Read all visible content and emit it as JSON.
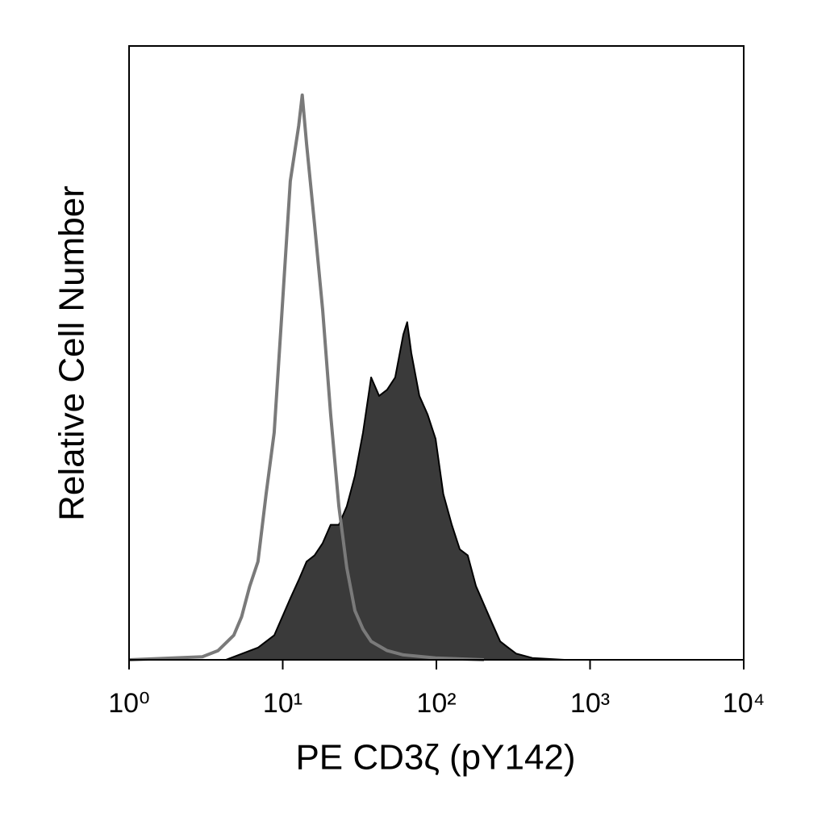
{
  "chart_data": {
    "type": "histogram",
    "xlabel": "PE CD3ζ (pY142)",
    "ylabel": "Relative Cell Number",
    "xscale": "log",
    "xlim": [
      1,
      10000
    ],
    "xticks": [
      {
        "value": 1,
        "label": "10⁰"
      },
      {
        "value": 10,
        "label": "10¹"
      },
      {
        "value": 100,
        "label": "10²"
      },
      {
        "value": 1000,
        "label": "10³"
      },
      {
        "value": 10000,
        "label": "10⁴"
      }
    ],
    "ylim": [
      0,
      100
    ],
    "series": [
      {
        "color": "#3a3a3a",
        "filled": true,
        "x": [
          4.26,
          5.43,
          6.92,
          8.81,
          9.94,
          11.2,
          12.7,
          14.3,
          16.1,
          18.2,
          20.5,
          23.2,
          26.1,
          29.5,
          33.3,
          37.6,
          42.4,
          47.8,
          53.9,
          60.9,
          64.6,
          68.7,
          77.5,
          87.5,
          98.8,
          111,
          126,
          142,
          160,
          181,
          204,
          230,
          260,
          293,
          331,
          421,
          680
        ],
        "values": [
          0,
          1,
          2,
          4,
          7,
          10,
          13,
          16,
          17,
          19,
          22,
          22,
          25,
          30,
          37,
          46,
          43,
          44,
          46,
          53,
          55,
          50,
          43,
          40,
          36,
          27,
          22,
          18,
          17,
          12,
          9,
          6,
          3,
          2,
          1,
          0.3,
          0
        ]
      },
      {
        "color": "#7a7a7a",
        "filled": false,
        "x": [
          1,
          3,
          3.8,
          4.8,
          5.4,
          6.1,
          6.9,
          7.8,
          8.8,
          9.9,
          11.2,
          12.7,
          13.4,
          14.3,
          16.1,
          18.2,
          20.5,
          23.2,
          26.1,
          29.5,
          33.3,
          37.6,
          47.8,
          60.9,
          98.8,
          204
        ],
        "values": [
          0,
          0.5,
          1.5,
          4,
          7,
          12,
          16,
          27,
          37,
          57,
          78,
          87,
          92,
          84,
          71,
          57,
          40,
          25,
          15,
          8,
          5,
          3,
          1.5,
          0.8,
          0.3,
          0
        ]
      }
    ]
  }
}
